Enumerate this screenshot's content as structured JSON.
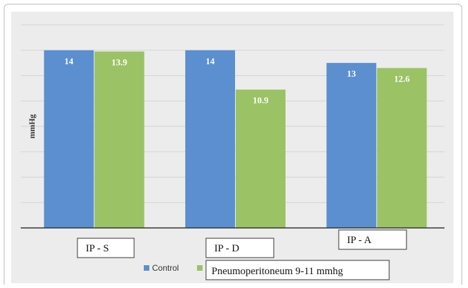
{
  "colors": {
    "page_bg": "#ffffff",
    "frame_border": "#b8b8b8",
    "plot_bg": "#ececec",
    "grid": "#d4d4d4",
    "baseline": "#333333",
    "label_text": "#ffffff",
    "series": [
      "#5b8fcf",
      "#9bc265"
    ]
  },
  "chart_data": {
    "type": "bar",
    "title": "",
    "xlabel": "",
    "ylabel": "mmHg",
    "ylim": [
      0,
      16
    ],
    "y_grid_step": 2,
    "grid": true,
    "legend_position": "bottom",
    "categories": [
      "IP - S",
      "IP - D",
      "IP - A"
    ],
    "series": [
      {
        "name": "Control",
        "values": [
          14,
          14,
          13
        ],
        "labels": [
          "14",
          "14",
          "13"
        ]
      },
      {
        "name": "Pneumoperitoneum 9-11 mmhg",
        "values": [
          13.9,
          10.9,
          12.6
        ],
        "labels": [
          "13.9",
          "10.9",
          "12.6"
        ]
      }
    ]
  }
}
